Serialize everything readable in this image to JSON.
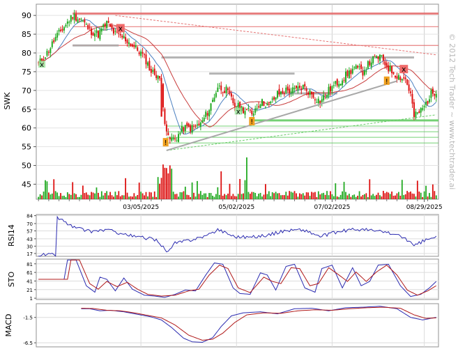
{
  "ticker": "SWK",
  "watermark": "© 2012 Tech Trader ~ www.techtrader.ai",
  "x_dates": [
    "03/05/2025",
    "05/02/2025",
    "07/02/2025",
    "08/29/2025"
  ],
  "colors": {
    "up": "#22aa22",
    "down": "#dd1111",
    "ma_blue": "#4a7fc0",
    "ma_red": "#c83c3c",
    "resistance": "#e57373",
    "support": "#66cc66",
    "sideline": "#a8a8a8",
    "indicator_blue": "#2b2bb0",
    "indicator_red": "#b01818"
  },
  "signals": {
    "sell": "x",
    "buy": "x",
    "alert": "!"
  },
  "chart_data": [
    {
      "type": "candlestick",
      "ylabel": "SWK",
      "ylim": [
        41,
        93
      ],
      "yticks": [
        "90",
        "85",
        "80",
        "75",
        "70",
        "65",
        "60",
        "55",
        "50",
        "45"
      ],
      "ytick_values": [
        90,
        85,
        80,
        75,
        70,
        65,
        60,
        55,
        50,
        45
      ],
      "anchors": [
        {
          "x": 0,
          "y": 77
        },
        {
          "x": 5,
          "y": 80
        },
        {
          "x": 10,
          "y": 84
        },
        {
          "x": 15,
          "y": 87
        },
        {
          "x": 20,
          "y": 90
        },
        {
          "x": 25,
          "y": 89
        },
        {
          "x": 30,
          "y": 86
        },
        {
          "x": 35,
          "y": 85
        },
        {
          "x": 40,
          "y": 88
        },
        {
          "x": 45,
          "y": 85
        },
        {
          "x": 50,
          "y": 84
        },
        {
          "x": 55,
          "y": 82
        },
        {
          "x": 60,
          "y": 80
        },
        {
          "x": 63,
          "y": 78
        },
        {
          "x": 66,
          "y": 75
        },
        {
          "x": 70,
          "y": 74
        },
        {
          "x": 72,
          "y": 71
        },
        {
          "x": 74,
          "y": 62
        },
        {
          "x": 76,
          "y": 57
        },
        {
          "x": 80,
          "y": 57
        },
        {
          "x": 85,
          "y": 60
        },
        {
          "x": 90,
          "y": 60
        },
        {
          "x": 95,
          "y": 61
        },
        {
          "x": 100,
          "y": 65
        },
        {
          "x": 105,
          "y": 71
        },
        {
          "x": 110,
          "y": 70
        },
        {
          "x": 115,
          "y": 66
        },
        {
          "x": 120,
          "y": 65
        },
        {
          "x": 125,
          "y": 64
        },
        {
          "x": 130,
          "y": 67
        },
        {
          "x": 135,
          "y": 66
        },
        {
          "x": 140,
          "y": 69
        },
        {
          "x": 145,
          "y": 70
        },
        {
          "x": 150,
          "y": 70
        },
        {
          "x": 155,
          "y": 71
        },
        {
          "x": 160,
          "y": 69
        },
        {
          "x": 165,
          "y": 67
        },
        {
          "x": 170,
          "y": 70
        },
        {
          "x": 175,
          "y": 72
        },
        {
          "x": 180,
          "y": 74
        },
        {
          "x": 185,
          "y": 76
        },
        {
          "x": 190,
          "y": 75
        },
        {
          "x": 195,
          "y": 78
        },
        {
          "x": 200,
          "y": 79
        },
        {
          "x": 205,
          "y": 76
        },
        {
          "x": 210,
          "y": 74
        },
        {
          "x": 215,
          "y": 73
        },
        {
          "x": 218,
          "y": 69
        },
        {
          "x": 220,
          "y": 63
        },
        {
          "x": 225,
          "y": 65
        },
        {
          "x": 230,
          "y": 69
        },
        {
          "x": 233,
          "y": 70
        }
      ],
      "horizontal_levels": {
        "resistance": [
          90.5,
          87,
          82
        ],
        "support": [
          62,
          60.5,
          59,
          57.5,
          56
        ],
        "sideline": [
          82,
          78.8,
          74.5,
          69.2
        ]
      },
      "trendlines": [
        {
          "from": {
            "x": 45,
            "y": 90
          },
          "to": {
            "x": 233,
            "y": 79.5
          },
          "style": "dashed",
          "color": "resistance"
        },
        {
          "from": {
            "x": 75,
            "y": 54
          },
          "to": {
            "x": 233,
            "y": 63.5
          },
          "style": "dashed",
          "color": "support"
        },
        {
          "from": {
            "x": 75,
            "y": 54
          },
          "to": {
            "x": 210,
            "y": 72.5
          },
          "style": "solid",
          "color": "sideline"
        }
      ],
      "markers": [
        {
          "kind": "buy",
          "x": 2,
          "y": 77
        },
        {
          "kind": "sell",
          "x": 48,
          "y": 86.6
        },
        {
          "kind": "alert",
          "x": 74.5,
          "y": 56.2
        },
        {
          "kind": "buy",
          "x": 117,
          "y": 64.5
        },
        {
          "kind": "alert",
          "x": 125,
          "y": 61.8
        },
        {
          "kind": "alert",
          "x": 204,
          "y": 72.6
        },
        {
          "kind": "sell",
          "x": 214,
          "y": 75.7
        }
      ]
    },
    {
      "type": "line",
      "ylabel": "RSI14",
      "yticks": [
        "84",
        "70",
        "57",
        "43",
        "30",
        "17"
      ],
      "ytick_values": [
        84,
        70,
        57,
        43,
        30,
        17
      ],
      "ylim": [
        12,
        86
      ],
      "series": [
        {
          "color": "indicator_blue",
          "anchors": [
            {
              "x": 0,
              "y": 15
            },
            {
              "x": 10,
              "y": 15
            },
            {
              "x": 11,
              "y": 80
            },
            {
              "x": 14,
              "y": 76
            },
            {
              "x": 20,
              "y": 64
            },
            {
              "x": 30,
              "y": 56
            },
            {
              "x": 40,
              "y": 59
            },
            {
              "x": 48,
              "y": 53
            },
            {
              "x": 56,
              "y": 47
            },
            {
              "x": 64,
              "y": 44
            },
            {
              "x": 70,
              "y": 40
            },
            {
              "x": 74,
              "y": 24
            },
            {
              "x": 76,
              "y": 20
            },
            {
              "x": 80,
              "y": 35
            },
            {
              "x": 90,
              "y": 42
            },
            {
              "x": 100,
              "y": 50
            },
            {
              "x": 105,
              "y": 60
            },
            {
              "x": 115,
              "y": 47
            },
            {
              "x": 125,
              "y": 46
            },
            {
              "x": 135,
              "y": 50
            },
            {
              "x": 145,
              "y": 58
            },
            {
              "x": 155,
              "y": 59
            },
            {
              "x": 165,
              "y": 47
            },
            {
              "x": 175,
              "y": 55
            },
            {
              "x": 185,
              "y": 60
            },
            {
              "x": 195,
              "y": 58
            },
            {
              "x": 205,
              "y": 54
            },
            {
              "x": 215,
              "y": 44
            },
            {
              "x": 220,
              "y": 30
            },
            {
              "x": 226,
              "y": 40
            },
            {
              "x": 233,
              "y": 46
            }
          ]
        }
      ]
    },
    {
      "type": "line",
      "ylabel": "STO",
      "yticks": [
        "81",
        "61",
        "41",
        "21",
        "1"
      ],
      "ytick_values": [
        81,
        61,
        41,
        21,
        1
      ],
      "ylim": [
        -2,
        92
      ],
      "series": [
        {
          "color": "indicator_blue",
          "anchors": [
            {
              "x": 0,
              "y": 45
            },
            {
              "x": 15,
              "y": 45
            },
            {
              "x": 17,
              "y": 90
            },
            {
              "x": 22,
              "y": 90
            },
            {
              "x": 28,
              "y": 30
            },
            {
              "x": 33,
              "y": 15
            },
            {
              "x": 36,
              "y": 50
            },
            {
              "x": 40,
              "y": 45
            },
            {
              "x": 45,
              "y": 18
            },
            {
              "x": 50,
              "y": 48
            },
            {
              "x": 55,
              "y": 22
            },
            {
              "x": 62,
              "y": 8
            },
            {
              "x": 68,
              "y": 6
            },
            {
              "x": 74,
              "y": 3
            },
            {
              "x": 80,
              "y": 10
            },
            {
              "x": 86,
              "y": 20
            },
            {
              "x": 92,
              "y": 18
            },
            {
              "x": 98,
              "y": 55
            },
            {
              "x": 103,
              "y": 83
            },
            {
              "x": 108,
              "y": 80
            },
            {
              "x": 114,
              "y": 25
            },
            {
              "x": 118,
              "y": 12
            },
            {
              "x": 124,
              "y": 10
            },
            {
              "x": 130,
              "y": 60
            },
            {
              "x": 134,
              "y": 55
            },
            {
              "x": 139,
              "y": 20
            },
            {
              "x": 145,
              "y": 75
            },
            {
              "x": 150,
              "y": 80
            },
            {
              "x": 156,
              "y": 25
            },
            {
              "x": 162,
              "y": 15
            },
            {
              "x": 166,
              "y": 70
            },
            {
              "x": 172,
              "y": 78
            },
            {
              "x": 178,
              "y": 25
            },
            {
              "x": 184,
              "y": 72
            },
            {
              "x": 189,
              "y": 30
            },
            {
              "x": 194,
              "y": 40
            },
            {
              "x": 199,
              "y": 78
            },
            {
              "x": 205,
              "y": 80
            },
            {
              "x": 212,
              "y": 30
            },
            {
              "x": 218,
              "y": 5
            },
            {
              "x": 224,
              "y": 10
            },
            {
              "x": 229,
              "y": 25
            },
            {
              "x": 233,
              "y": 40
            }
          ]
        },
        {
          "color": "indicator_red",
          "anchors": [
            {
              "x": 0,
              "y": 45
            },
            {
              "x": 17,
              "y": 45
            },
            {
              "x": 19,
              "y": 90
            },
            {
              "x": 24,
              "y": 90
            },
            {
              "x": 30,
              "y": 35
            },
            {
              "x": 35,
              "y": 22
            },
            {
              "x": 40,
              "y": 40
            },
            {
              "x": 46,
              "y": 28
            },
            {
              "x": 52,
              "y": 38
            },
            {
              "x": 58,
              "y": 22
            },
            {
              "x": 64,
              "y": 10
            },
            {
              "x": 72,
              "y": 6
            },
            {
              "x": 80,
              "y": 8
            },
            {
              "x": 88,
              "y": 18
            },
            {
              "x": 94,
              "y": 22
            },
            {
              "x": 100,
              "y": 55
            },
            {
              "x": 106,
              "y": 78
            },
            {
              "x": 111,
              "y": 70
            },
            {
              "x": 117,
              "y": 25
            },
            {
              "x": 124,
              "y": 14
            },
            {
              "x": 132,
              "y": 50
            },
            {
              "x": 137,
              "y": 40
            },
            {
              "x": 142,
              "y": 35
            },
            {
              "x": 148,
              "y": 72
            },
            {
              "x": 153,
              "y": 70
            },
            {
              "x": 159,
              "y": 30
            },
            {
              "x": 164,
              "y": 35
            },
            {
              "x": 170,
              "y": 72
            },
            {
              "x": 176,
              "y": 55
            },
            {
              "x": 181,
              "y": 40
            },
            {
              "x": 186,
              "y": 62
            },
            {
              "x": 192,
              "y": 40
            },
            {
              "x": 198,
              "y": 62
            },
            {
              "x": 204,
              "y": 78
            },
            {
              "x": 210,
              "y": 55
            },
            {
              "x": 216,
              "y": 20
            },
            {
              "x": 222,
              "y": 8
            },
            {
              "x": 228,
              "y": 18
            },
            {
              "x": 233,
              "y": 30
            }
          ]
        }
      ]
    },
    {
      "type": "line",
      "ylabel": "MACD",
      "yticks": [
        "-1.5",
        "-6.5"
      ],
      "ytick_values": [
        -1.5,
        -6.5
      ],
      "ylim": [
        -7.3,
        1.2
      ],
      "series": [
        {
          "color": "indicator_blue",
          "anchors": [
            {
              "x": 25,
              "y": 0.2
            },
            {
              "x": 30,
              "y": 0.2
            },
            {
              "x": 36,
              "y": -0.2
            },
            {
              "x": 42,
              "y": -0.1
            },
            {
              "x": 50,
              "y": -0.4
            },
            {
              "x": 58,
              "y": -0.9
            },
            {
              "x": 66,
              "y": -1.4
            },
            {
              "x": 72,
              "y": -2.0
            },
            {
              "x": 78,
              "y": -3.5
            },
            {
              "x": 85,
              "y": -5.6
            },
            {
              "x": 90,
              "y": -6.3
            },
            {
              "x": 96,
              "y": -6.4
            },
            {
              "x": 102,
              "y": -5.5
            },
            {
              "x": 107,
              "y": -3.3
            },
            {
              "x": 113,
              "y": -1.2
            },
            {
              "x": 120,
              "y": -0.6
            },
            {
              "x": 130,
              "y": -0.4
            },
            {
              "x": 140,
              "y": -0.8
            },
            {
              "x": 150,
              "y": 0.2
            },
            {
              "x": 160,
              "y": 0.3
            },
            {
              "x": 170,
              "y": -0.2
            },
            {
              "x": 180,
              "y": 0.4
            },
            {
              "x": 190,
              "y": 0.5
            },
            {
              "x": 200,
              "y": 0.7
            },
            {
              "x": 210,
              "y": 0.2
            },
            {
              "x": 218,
              "y": -1.5
            },
            {
              "x": 225,
              "y": -2.0
            },
            {
              "x": 233,
              "y": -1.5
            }
          ]
        },
        {
          "color": "indicator_red",
          "anchors": [
            {
              "x": 25,
              "y": 0.3
            },
            {
              "x": 32,
              "y": 0.25
            },
            {
              "x": 40,
              "y": -0.1
            },
            {
              "x": 48,
              "y": -0.2
            },
            {
              "x": 56,
              "y": -0.6
            },
            {
              "x": 64,
              "y": -1.1
            },
            {
              "x": 72,
              "y": -1.6
            },
            {
              "x": 80,
              "y": -3.0
            },
            {
              "x": 88,
              "y": -5.0
            },
            {
              "x": 96,
              "y": -6.0
            },
            {
              "x": 102,
              "y": -5.8
            },
            {
              "x": 108,
              "y": -4.6
            },
            {
              "x": 115,
              "y": -2.5
            },
            {
              "x": 122,
              "y": -1.0
            },
            {
              "x": 132,
              "y": -0.6
            },
            {
              "x": 142,
              "y": -0.7
            },
            {
              "x": 152,
              "y": -0.2
            },
            {
              "x": 162,
              "y": 0.0
            },
            {
              "x": 172,
              "y": -0.1
            },
            {
              "x": 182,
              "y": 0.2
            },
            {
              "x": 192,
              "y": 0.4
            },
            {
              "x": 202,
              "y": 0.5
            },
            {
              "x": 212,
              "y": 0.3
            },
            {
              "x": 220,
              "y": -1.0
            },
            {
              "x": 227,
              "y": -1.7
            },
            {
              "x": 233,
              "y": -1.6
            }
          ]
        }
      ]
    }
  ]
}
